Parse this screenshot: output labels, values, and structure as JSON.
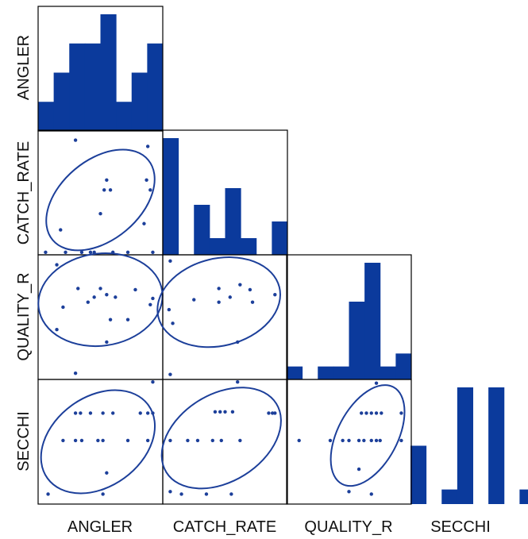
{
  "chart_data": {
    "type": "scatter",
    "subtype": "scatterplot-matrix",
    "variables": [
      "ANGLER",
      "CATCH_RATE",
      "QUALITY_R",
      "SECCHI"
    ],
    "colors": {
      "marks": "#0b3a9c",
      "ellipse": "#1c3f9a",
      "frame": "#000000"
    },
    "diagonal_histograms": {
      "ANGLER": [
        1,
        2,
        3,
        3,
        4,
        1,
        2,
        3
      ],
      "CATCH_RATE": [
        7,
        0,
        3,
        1,
        4,
        1,
        0,
        2
      ],
      "QUALITY_R": [
        1,
        0,
        1,
        1,
        6,
        9,
        1,
        2
      ],
      "SECCHI": [
        4,
        0,
        1,
        8,
        0,
        8,
        0,
        1
      ]
    },
    "scatter_pairs": [
      {
        "x": "ANGLER",
        "y": "CATCH_RATE",
        "points": [
          [
            0.3,
            0.92
          ],
          [
            0.88,
            0.87
          ],
          [
            0.55,
            0.6
          ],
          [
            0.53,
            0.52
          ],
          [
            0.58,
            0.52
          ],
          [
            0.87,
            0.6
          ],
          [
            0.9,
            0.52
          ],
          [
            0.85,
            0.25
          ],
          [
            0.5,
            0.33
          ],
          [
            0.22,
            0.02
          ],
          [
            0.35,
            0.02
          ],
          [
            0.42,
            0.02
          ],
          [
            0.45,
            0.02
          ],
          [
            0.6,
            0.02
          ],
          [
            0.72,
            0.02
          ],
          [
            0.06,
            0.02
          ],
          [
            0.92,
            0.02
          ],
          [
            0.18,
            0.2
          ]
        ],
        "ellipse": {
          "cx": 0.5,
          "cy": 0.44,
          "rx": 0.5,
          "ry": 0.32,
          "angle": -40
        }
      },
      {
        "x": "ANGLER",
        "y": "QUALITY_R",
        "points": [
          [
            0.15,
            0.92
          ],
          [
            0.32,
            0.73
          ],
          [
            0.5,
            0.73
          ],
          [
            0.78,
            0.72
          ],
          [
            0.45,
            0.66
          ],
          [
            0.55,
            0.68
          ],
          [
            0.62,
            0.66
          ],
          [
            0.4,
            0.62
          ],
          [
            0.92,
            0.65
          ],
          [
            0.9,
            0.6
          ],
          [
            0.2,
            0.58
          ],
          [
            0.58,
            0.48
          ],
          [
            0.72,
            0.48
          ],
          [
            0.15,
            0.4
          ],
          [
            0.55,
            0.3
          ],
          [
            0.3,
            0.05
          ]
        ],
        "ellipse": {
          "cx": 0.5,
          "cy": 0.64,
          "rx": 0.5,
          "ry": 0.37,
          "angle": -8
        }
      },
      {
        "x": "CATCH_RATE",
        "y": "QUALITY_R",
        "points": [
          [
            0.06,
            0.95
          ],
          [
            0.45,
            0.73
          ],
          [
            0.62,
            0.76
          ],
          [
            0.7,
            0.72
          ],
          [
            0.9,
            0.68
          ],
          [
            0.25,
            0.64
          ],
          [
            0.45,
            0.62
          ],
          [
            0.54,
            0.66
          ],
          [
            0.72,
            0.62
          ],
          [
            0.05,
            0.56
          ],
          [
            0.08,
            0.45
          ],
          [
            0.6,
            0.3
          ],
          [
            0.06,
            0.04
          ]
        ],
        "ellipse": {
          "cx": 0.45,
          "cy": 0.62,
          "rx": 0.5,
          "ry": 0.35,
          "angle": -14
        }
      },
      {
        "x": "ANGLER",
        "y": "SECCHI",
        "points": [
          [
            0.92,
            0.98
          ],
          [
            0.3,
            0.73
          ],
          [
            0.34,
            0.73
          ],
          [
            0.42,
            0.73
          ],
          [
            0.52,
            0.73
          ],
          [
            0.6,
            0.73
          ],
          [
            0.82,
            0.73
          ],
          [
            0.88,
            0.73
          ],
          [
            0.92,
            0.73
          ],
          [
            0.2,
            0.51
          ],
          [
            0.3,
            0.51
          ],
          [
            0.35,
            0.51
          ],
          [
            0.48,
            0.51
          ],
          [
            0.52,
            0.51
          ],
          [
            0.72,
            0.51
          ],
          [
            0.88,
            0.51
          ],
          [
            0.55,
            0.25
          ],
          [
            0.08,
            0.08
          ],
          [
            0.52,
            0.08
          ]
        ],
        "ellipse": {
          "cx": 0.48,
          "cy": 0.5,
          "rx": 0.5,
          "ry": 0.36,
          "angle": -36
        }
      },
      {
        "x": "CATCH_RATE",
        "y": "SECCHI",
        "points": [
          [
            0.6,
            0.98
          ],
          [
            0.42,
            0.74
          ],
          [
            0.46,
            0.74
          ],
          [
            0.5,
            0.74
          ],
          [
            0.56,
            0.74
          ],
          [
            0.85,
            0.73
          ],
          [
            0.88,
            0.73
          ],
          [
            0.9,
            0.73
          ],
          [
            0.2,
            0.51
          ],
          [
            0.28,
            0.51
          ],
          [
            0.4,
            0.51
          ],
          [
            0.47,
            0.51
          ],
          [
            0.62,
            0.51
          ],
          [
            0.06,
            0.51
          ],
          [
            0.06,
            0.1
          ],
          [
            0.15,
            0.08
          ],
          [
            0.35,
            0.08
          ],
          [
            0.55,
            0.08
          ]
        ],
        "ellipse": {
          "cx": 0.47,
          "cy": 0.53,
          "rx": 0.52,
          "ry": 0.35,
          "angle": -32
        }
      },
      {
        "x": "QUALITY_R",
        "y": "SECCHI",
        "points": [
          [
            0.72,
            0.97
          ],
          [
            0.6,
            0.73
          ],
          [
            0.64,
            0.73
          ],
          [
            0.68,
            0.73
          ],
          [
            0.72,
            0.73
          ],
          [
            0.76,
            0.73
          ],
          [
            0.92,
            0.73
          ],
          [
            0.1,
            0.51
          ],
          [
            0.35,
            0.51
          ],
          [
            0.45,
            0.51
          ],
          [
            0.5,
            0.51
          ],
          [
            0.58,
            0.51
          ],
          [
            0.62,
            0.51
          ],
          [
            0.68,
            0.51
          ],
          [
            0.72,
            0.51
          ],
          [
            0.75,
            0.51
          ],
          [
            0.92,
            0.51
          ],
          [
            0.58,
            0.28
          ],
          [
            0.5,
            0.1
          ],
          [
            0.68,
            0.08
          ]
        ],
        "ellipse": {
          "cx": 0.65,
          "cy": 0.55,
          "rx": 0.44,
          "ry": 0.24,
          "angle": -62
        }
      }
    ]
  }
}
